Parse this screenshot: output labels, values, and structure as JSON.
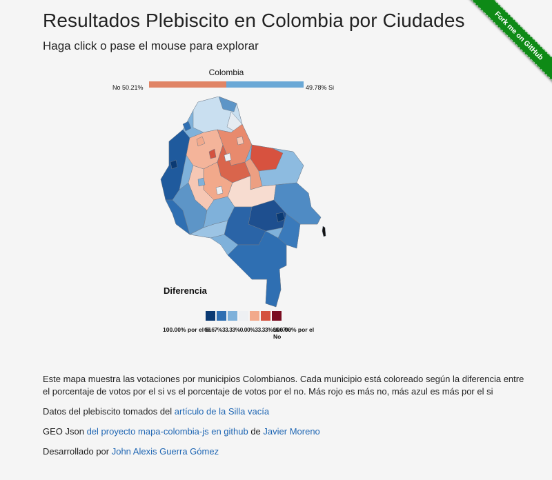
{
  "header": {
    "title": "Resultados Plebiscito en Colombia por Ciudades",
    "subtitle": "Haga click o pase el mouse para explorar"
  },
  "ribbon": {
    "label": "Fork me on GitHub",
    "color": "#0e8a16"
  },
  "summary": {
    "region": "Colombia",
    "no_label": "No 50.21%",
    "si_label": "49.78% Si",
    "no_percent": 50.21,
    "si_percent": 49.78,
    "no_color": "#e08465",
    "si_color": "#6aa8d6"
  },
  "legend": {
    "title": "Diferencia",
    "left_label": "100.00% por el Si",
    "middle_label": "66.67%33.33%0.00%33.33%66.67%",
    "right_label": "100.00% por el No",
    "colors": [
      "#0b3a73",
      "#2f6fb2",
      "#7fb1da",
      "#eef0f3",
      "#f2a98b",
      "#d4523f",
      "#7a0c20"
    ]
  },
  "content": {
    "description": "Este mapa muestra las votaciones por municipios Colombianos. Cada municipio está coloreado según la diferencia entre el porcentaje de votos por el si vs el porcentaje de votos por el no. Más rojo es más no, más azul es más por el si",
    "data_prefix": "Datos del plebiscito tomados del ",
    "data_link": "artículo de la Silla vacía",
    "geo_prefix": "GEO Json ",
    "geo_link": "del proyecto mapa-colombia-js en github",
    "geo_mid": " de ",
    "geo_author_link": "Javier Moreno",
    "dev_prefix": "Desarrollado por ",
    "dev_link": "John Alexis Guerra Gómez"
  }
}
